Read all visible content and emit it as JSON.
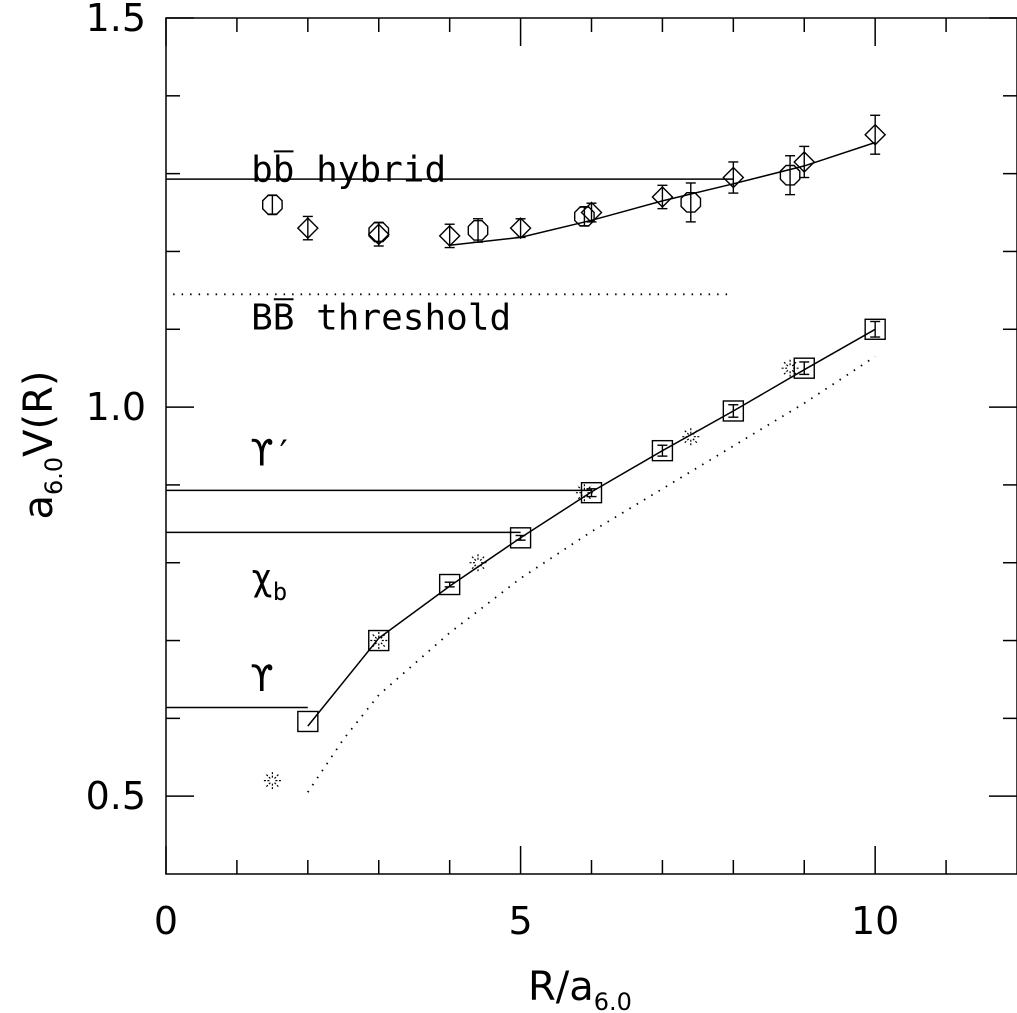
{
  "chart_data": {
    "type": "scatter",
    "xlabel": {
      "main": "R/a",
      "sub": "6.0"
    },
    "ylabel": {
      "main": "a",
      "sub": "6.0",
      "tail": "V(R)"
    },
    "xlim": [
      0,
      12
    ],
    "ylim": [
      0.4,
      1.5
    ],
    "x_major_ticks": [
      0,
      5,
      10
    ],
    "x_tick_labels": [
      "0",
      "5",
      "10"
    ],
    "x_minor_ticks": [
      1,
      2,
      3,
      4,
      6,
      7,
      8,
      9,
      11
    ],
    "y_major_ticks": [
      0.5,
      1.0,
      1.5
    ],
    "y_tick_labels": [
      "0.5",
      "1.0",
      "1.5"
    ],
    "y_minor_ticks": [
      0.6,
      0.7,
      0.8,
      0.9,
      1.1,
      1.2,
      1.3,
      1.4
    ],
    "grid": false,
    "annotations": [
      {
        "id": "hybrid",
        "text": "bb hybrid",
        "overline_chars": [
          1
        ],
        "x": 1.2,
        "y": 1.29
      },
      {
        "id": "threshold",
        "text": "BB threshold",
        "overline_chars": [
          1
        ],
        "x": 1.2,
        "y": 1.1
      },
      {
        "id": "upsilon-prime",
        "text": "ϒ′",
        "x": 1.2,
        "y": 0.925
      },
      {
        "id": "chi-b",
        "text": "χ",
        "sub": "b",
        "x": 1.2,
        "y": 0.765
      },
      {
        "id": "upsilon",
        "text": "ϒ",
        "x": 1.2,
        "y": 0.635
      }
    ],
    "reference_lines": [
      {
        "name": "hybrid-level",
        "style": "solid",
        "x": [
          0,
          8
        ],
        "y": [
          1.293,
          1.293
        ]
      },
      {
        "name": "threshold-level",
        "style": "dotted",
        "x": [
          0.1,
          8
        ],
        "y": [
          1.145,
          1.145
        ]
      },
      {
        "name": "upsilon-prime-level",
        "style": "solid",
        "x": [
          0,
          6
        ],
        "y": [
          0.893,
          0.893
        ]
      },
      {
        "name": "chi-b-level",
        "style": "solid",
        "x": [
          0,
          5
        ],
        "y": [
          0.839,
          0.839
        ]
      },
      {
        "name": "upsilon-level",
        "style": "solid",
        "x": [
          0,
          2
        ],
        "y": [
          0.614,
          0.614
        ]
      }
    ],
    "curves": [
      {
        "name": "hybrid-fit",
        "style": "solid",
        "x": [
          4,
          5,
          6,
          7,
          8,
          9,
          10
        ],
        "y": [
          1.208,
          1.218,
          1.24,
          1.265,
          1.287,
          1.31,
          1.34
        ]
      },
      {
        "name": "ground-fit",
        "style": "solid",
        "x": [
          2,
          3,
          4,
          5,
          6,
          7,
          8,
          9,
          10
        ],
        "y": [
          0.59,
          0.703,
          0.77,
          0.832,
          0.891,
          0.944,
          0.995,
          1.048,
          1.1
        ]
      },
      {
        "name": "ground-fit-dotted",
        "style": "dotted",
        "x": [
          2,
          2.5,
          3,
          4,
          5,
          6,
          7,
          8,
          9,
          10
        ],
        "y": [
          0.505,
          0.573,
          0.63,
          0.71,
          0.78,
          0.84,
          0.895,
          0.95,
          1.005,
          1.065
        ]
      }
    ],
    "series": [
      {
        "marker": "diamond",
        "points": [
          {
            "x": 2.0,
            "y": 1.23,
            "err": 0.015
          },
          {
            "x": 3.0,
            "y": 1.222,
            "err": 0.015
          },
          {
            "x": 4.0,
            "y": 1.22,
            "err": 0.015
          },
          {
            "x": 5.0,
            "y": 1.23,
            "err": 0.012
          },
          {
            "x": 6.0,
            "y": 1.25,
            "err": 0.012
          },
          {
            "x": 7.0,
            "y": 1.27,
            "err": 0.015
          },
          {
            "x": 8.0,
            "y": 1.295,
            "err": 0.02
          },
          {
            "x": 9.0,
            "y": 1.315,
            "err": 0.02
          },
          {
            "x": 10.0,
            "y": 1.35,
            "err": 0.025
          }
        ]
      },
      {
        "marker": "octagon",
        "points": [
          {
            "x": 1.5,
            "y": 1.26,
            "err": 0.012
          },
          {
            "x": 3.0,
            "y": 1.225,
            "err": 0.012
          },
          {
            "x": 4.4,
            "y": 1.227,
            "err": 0.015
          },
          {
            "x": 5.9,
            "y": 1.245,
            "err": 0.012
          },
          {
            "x": 7.4,
            "y": 1.263,
            "err": 0.025
          },
          {
            "x": 8.8,
            "y": 1.298,
            "err": 0.025
          }
        ]
      },
      {
        "marker": "square",
        "points": [
          {
            "x": 2.0,
            "y": 0.596,
            "err": 0.0
          },
          {
            "x": 3.0,
            "y": 0.7,
            "err": 0.0
          },
          {
            "x": 4.0,
            "y": 0.772,
            "err": 0.003
          },
          {
            "x": 5.0,
            "y": 0.832,
            "err": 0.003
          },
          {
            "x": 6.0,
            "y": 0.89,
            "err": 0.005
          },
          {
            "x": 7.0,
            "y": 0.944,
            "err": 0.007
          },
          {
            "x": 8.0,
            "y": 0.995,
            "err": 0.008
          },
          {
            "x": 9.0,
            "y": 1.05,
            "err": 0.008
          },
          {
            "x": 10.0,
            "y": 1.1,
            "err": 0.01
          }
        ]
      },
      {
        "marker": "star",
        "points": [
          {
            "x": 1.5,
            "y": 0.52,
            "err": 0.0
          },
          {
            "x": 3.0,
            "y": 0.7,
            "err": 0.0
          },
          {
            "x": 4.4,
            "y": 0.8,
            "err": 0.0
          },
          {
            "x": 5.9,
            "y": 0.89,
            "err": 0.0
          },
          {
            "x": 7.4,
            "y": 0.962,
            "err": 0.0
          },
          {
            "x": 8.8,
            "y": 1.05,
            "err": 0.0
          }
        ]
      }
    ]
  }
}
